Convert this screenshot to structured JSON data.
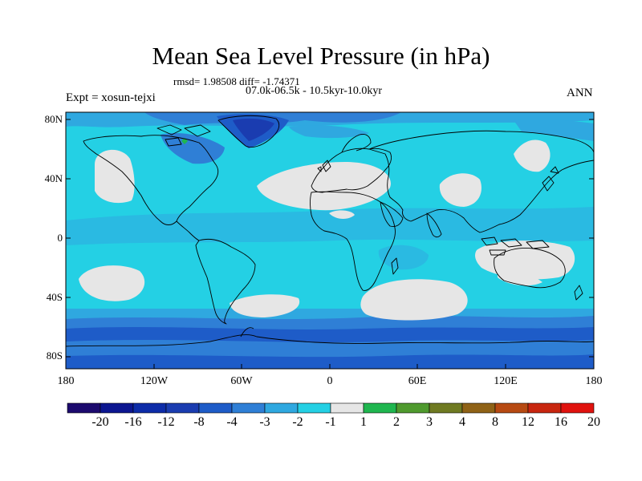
{
  "title": "Mean Sea Level Pressure (in hPa)",
  "stats": "rmsd= 1.98508 diff= -1.74371",
  "period": "07.0k-06.5k - 10.5kyr-10.0kyr",
  "experiment": "Expt = xosun-tejxi",
  "season": "ANN",
  "lat_labels": [
    "80N",
    "40N",
    "0",
    "40S",
    "80S"
  ],
  "lon_labels": [
    "180",
    "120W",
    "60W",
    "0",
    "60E",
    "120E",
    "180"
  ],
  "colorbar": {
    "labels": [
      "-20",
      "-16",
      "-12",
      "-8",
      "-4",
      "-3",
      "-2",
      "-1",
      "1",
      "2",
      "3",
      "4",
      "8",
      "12",
      "16",
      "20"
    ],
    "colors": [
      "#1c0a6e",
      "#0c1690",
      "#0d2ca8",
      "#1a3cb0",
      "#1e5cc8",
      "#2f7fd6",
      "#2fa8e0",
      "#24d0e4",
      "#e6e6e6",
      "#1fb64f",
      "#4f9a2e",
      "#6f7a22",
      "#8f6216",
      "#b74a12",
      "#c8260f",
      "#e0120e"
    ]
  }
}
